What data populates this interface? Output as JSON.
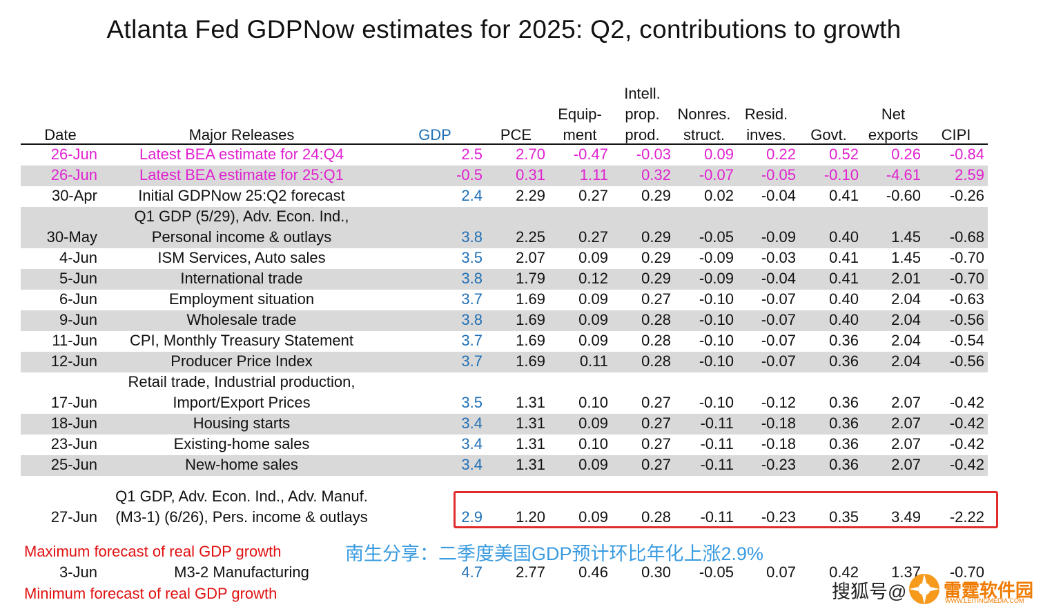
{
  "title": "Atlanta Fed GDPNow estimates for 2025: Q2, contributions to growth",
  "headers": {
    "date": "Date",
    "releases": "Major Releases",
    "gdp": "GDP",
    "pce": "PCE",
    "equip_1": "Equip-",
    "equip_2": "ment",
    "intell_1": "Intell.",
    "intell_2": "prop.",
    "intell_3": "prod.",
    "nonres_1": "Nonres.",
    "nonres_2": "struct.",
    "resid_1": "Resid.",
    "resid_2": "inves.",
    "govt": "Govt.",
    "netexp_1": "Net",
    "netexp_2": "exports",
    "cipi": "CIPI"
  },
  "rows": [
    {
      "date": "26-Jun",
      "rel1": "",
      "rel2": "Latest BEA estimate for 24:Q4",
      "gdp": "2.5",
      "pce": "2.70",
      "equip": "-0.47",
      "intell": "-0.03",
      "nonres": "0.09",
      "resid": "0.22",
      "govt": "0.52",
      "netexp": "0.26",
      "cipi": "-0.84"
    },
    {
      "date": "26-Jun",
      "rel1": "",
      "rel2": "Latest BEA estimate for 25:Q1",
      "gdp": "-0.5",
      "pce": "0.31",
      "equip": "1.11",
      "intell": "0.32",
      "nonres": "-0.07",
      "resid": "-0.05",
      "govt": "-0.10",
      "netexp": "-4.61",
      "cipi": "2.59"
    },
    {
      "date": "30-Apr",
      "rel1": "",
      "rel2": "Initial GDPNow 25:Q2 forecast",
      "gdp": "2.4",
      "pce": "2.29",
      "equip": "0.27",
      "intell": "0.29",
      "nonres": "0.02",
      "resid": "-0.04",
      "govt": "0.41",
      "netexp": "-0.60",
      "cipi": "-0.26"
    },
    {
      "date": "30-May",
      "rel1": "Q1 GDP (5/29), Adv. Econ. Ind.,",
      "rel2": "Personal income & outlays",
      "gdp": "3.8",
      "pce": "2.25",
      "equip": "0.27",
      "intell": "0.29",
      "nonres": "-0.05",
      "resid": "-0.09",
      "govt": "0.40",
      "netexp": "1.45",
      "cipi": "-0.68"
    },
    {
      "date": "4-Jun",
      "rel1": "",
      "rel2": "ISM Services, Auto sales",
      "gdp": "3.5",
      "pce": "2.07",
      "equip": "0.09",
      "intell": "0.29",
      "nonres": "-0.09",
      "resid": "-0.03",
      "govt": "0.41",
      "netexp": "1.45",
      "cipi": "-0.70"
    },
    {
      "date": "5-Jun",
      "rel1": "",
      "rel2": "International trade",
      "gdp": "3.8",
      "pce": "1.79",
      "equip": "0.12",
      "intell": "0.29",
      "nonres": "-0.09",
      "resid": "-0.04",
      "govt": "0.41",
      "netexp": "2.01",
      "cipi": "-0.70"
    },
    {
      "date": "6-Jun",
      "rel1": "",
      "rel2": "Employment situation",
      "gdp": "3.7",
      "pce": "1.69",
      "equip": "0.09",
      "intell": "0.27",
      "nonres": "-0.10",
      "resid": "-0.07",
      "govt": "0.40",
      "netexp": "2.04",
      "cipi": "-0.63"
    },
    {
      "date": "9-Jun",
      "rel1": "",
      "rel2": "Wholesale trade",
      "gdp": "3.8",
      "pce": "1.69",
      "equip": "0.09",
      "intell": "0.28",
      "nonres": "-0.10",
      "resid": "-0.07",
      "govt": "0.40",
      "netexp": "2.04",
      "cipi": "-0.56"
    },
    {
      "date": "11-Jun",
      "rel1": "",
      "rel2": "CPI, Monthly Treasury Statement",
      "gdp": "3.7",
      "pce": "1.69",
      "equip": "0.09",
      "intell": "0.28",
      "nonres": "-0.10",
      "resid": "-0.07",
      "govt": "0.36",
      "netexp": "2.04",
      "cipi": "-0.54"
    },
    {
      "date": "12-Jun",
      "rel1": "",
      "rel2": "Producer Price Index",
      "gdp": "3.7",
      "pce": "1.69",
      "equip": "0.11",
      "intell": "0.28",
      "nonres": "-0.10",
      "resid": "-0.07",
      "govt": "0.36",
      "netexp": "2.04",
      "cipi": "-0.56"
    },
    {
      "date": "17-Jun",
      "rel1": "Retail trade, Industrial production,",
      "rel2": "Import/Export Prices",
      "gdp": "3.5",
      "pce": "1.31",
      "equip": "0.10",
      "intell": "0.27",
      "nonres": "-0.10",
      "resid": "-0.12",
      "govt": "0.36",
      "netexp": "2.07",
      "cipi": "-0.42"
    },
    {
      "date": "18-Jun",
      "rel1": "",
      "rel2": "Housing starts",
      "gdp": "3.4",
      "pce": "1.31",
      "equip": "0.09",
      "intell": "0.27",
      "nonres": "-0.11",
      "resid": "-0.18",
      "govt": "0.36",
      "netexp": "2.07",
      "cipi": "-0.42"
    },
    {
      "date": "23-Jun",
      "rel1": "",
      "rel2": "Existing-home sales",
      "gdp": "3.4",
      "pce": "1.31",
      "equip": "0.10",
      "intell": "0.27",
      "nonres": "-0.11",
      "resid": "-0.18",
      "govt": "0.36",
      "netexp": "2.07",
      "cipi": "-0.42"
    },
    {
      "date": "25-Jun",
      "rel1": "",
      "rel2": "New-home sales",
      "gdp": "3.4",
      "pce": "1.31",
      "equip": "0.09",
      "intell": "0.27",
      "nonres": "-0.11",
      "resid": "-0.23",
      "govt": "0.36",
      "netexp": "2.07",
      "cipi": "-0.42"
    },
    {
      "date": "27-Jun",
      "rel1": "Q1 GDP, Adv. Econ. Ind., Adv. Manuf.",
      "rel2": "(M3-1) (6/26), Pers. income & outlays",
      "gdp": "2.9",
      "pce": "1.20",
      "equip": "0.09",
      "intell": "0.28",
      "nonres": "-0.11",
      "resid": "-0.23",
      "govt": "0.35",
      "netexp": "3.49",
      "cipi": "-2.22"
    }
  ],
  "max_label": "Maximum forecast of real GDP growth",
  "max_row": {
    "date": "3-Jun",
    "rel2": "M3-2 Manufacturing",
    "gdp": "4.7",
    "pce": "2.77",
    "equip": "0.46",
    "intell": "0.30",
    "nonres": "-0.05",
    "resid": "0.07",
    "govt": "0.42",
    "netexp": "1.37",
    "cipi": "-0.70"
  },
  "min_label": "Minimum forecast of real GDP growth",
  "cn_note": "南生分享：二季度美国GDP预计环比年化上涨2.9%",
  "watermark": {
    "text": "搜狐号@",
    "brand": "雷霆软件园",
    "url": "WWW.LEITINGMEDIA.COM"
  }
}
